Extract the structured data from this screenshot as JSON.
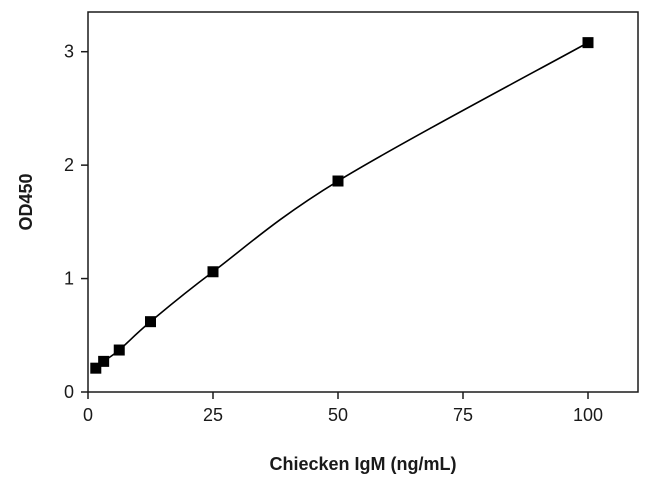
{
  "chart_data": {
    "type": "scatter",
    "title": "",
    "xlabel": "Chiecken IgM (ng/mL)",
    "ylabel": "OD450",
    "xlim": [
      0,
      110
    ],
    "ylim": [
      0,
      3.35
    ],
    "xticks": [
      0,
      25,
      50,
      75,
      100
    ],
    "yticks": [
      0,
      1,
      2,
      3
    ],
    "grid": false,
    "legend": "none",
    "series": [
      {
        "x": [
          1.56,
          3.13,
          6.25,
          12.5,
          25,
          50,
          100
        ],
        "y": [
          0.21,
          0.27,
          0.37,
          0.62,
          1.06,
          1.86,
          3.08
        ],
        "marker": "square",
        "fit_curve": true
      }
    ],
    "colors": {
      "marker": "#000000",
      "line": "#000000",
      "frame": "#1a1a1a"
    }
  }
}
